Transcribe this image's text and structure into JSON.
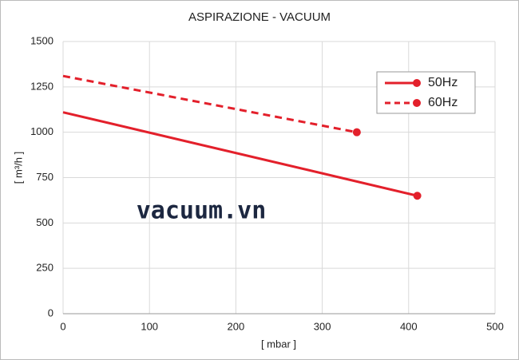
{
  "chart_data": {
    "type": "line",
    "title": "ASPIRAZIONE - VACUUM",
    "x_label": "[ mbar ]",
    "y_label": "[ m³/h ]",
    "annotation": "vacuum.vn",
    "series": [
      {
        "name": "50Hz",
        "color": "#e3202b",
        "line_style": "solid",
        "x": [
          0,
          410
        ],
        "values": [
          1110,
          650
        ]
      },
      {
        "name": "60Hz",
        "color": "#e3202b",
        "line_style": "dashed",
        "x": [
          0,
          340
        ],
        "values": [
          1310,
          1000
        ]
      }
    ],
    "markers": "last",
    "xlim": [
      0,
      500
    ],
    "xticks": [
      0,
      100,
      200,
      300,
      400,
      500
    ],
    "ylim": [
      0,
      1500
    ],
    "yticks": [
      0,
      250,
      500,
      750,
      1000,
      1250,
      1500
    ],
    "grid": true,
    "legend": "upper right"
  }
}
